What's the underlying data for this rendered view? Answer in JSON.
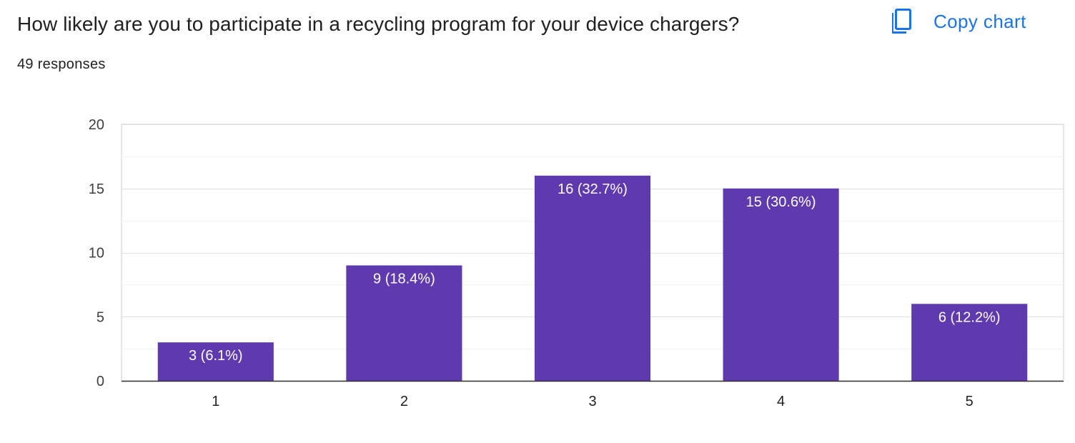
{
  "question": "How likely are you to participate in a recycling program for your device chargers?",
  "responses": "49 responses",
  "copy_chart_label": "Copy chart",
  "copy_icon": "copy-icon",
  "colors": {
    "bar": "#5f3aaf",
    "accent": "#1a73e8",
    "grid": "#e6e6e6",
    "baseline": "#333333"
  },
  "chart_data": {
    "type": "bar",
    "categories": [
      "1",
      "2",
      "3",
      "4",
      "5"
    ],
    "values": [
      3,
      9,
      16,
      15,
      6
    ],
    "bar_labels": [
      "3 (6.1%)",
      "9 (18.4%)",
      "16 (32.7%)",
      "15 (30.6%)",
      "6 (12.2%)"
    ],
    "ylim": [
      0,
      20
    ],
    "yticks": [
      "0",
      "5",
      "10",
      "15",
      "20"
    ],
    "ytick_values": [
      0,
      5,
      10,
      15,
      20
    ],
    "grid": true,
    "legend": "none"
  }
}
